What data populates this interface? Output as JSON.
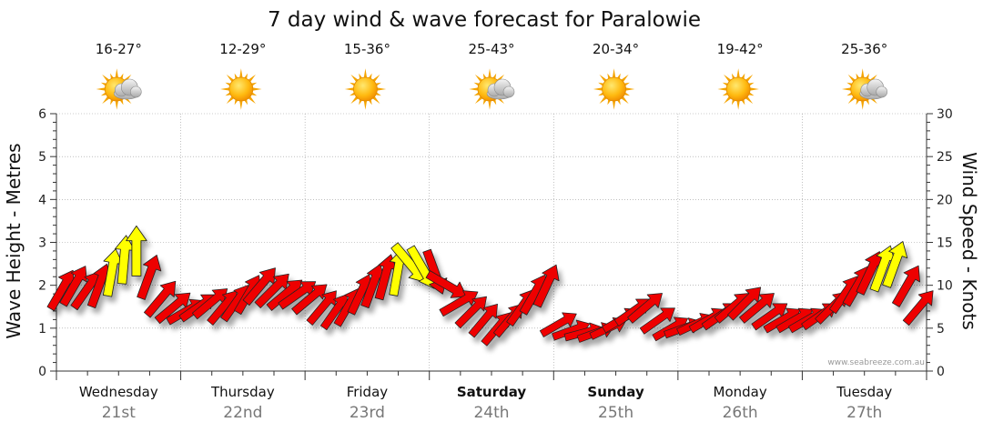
{
  "chart_data": {
    "type": "line",
    "title": "7 day wind & wave forecast for Paralowie",
    "ylabel_left": "Wave Height - Metres",
    "ylabel_right": "Wind Speed - Knots",
    "ylim_left": [
      0,
      6
    ],
    "ylim_right": [
      0,
      30
    ],
    "yticks_left": [
      "0",
      "1",
      "2",
      "3",
      "4",
      "5",
      "6"
    ],
    "yticks_right": [
      "0",
      "5",
      "10",
      "15",
      "20",
      "25",
      "30"
    ],
    "credit": "www.seabreeze.com.au",
    "colors": {
      "strong_wind": "#ee0000",
      "light_wind": "#ffff00",
      "grid": "#999999"
    },
    "days": [
      {
        "name": "Wednesday",
        "date": "21st",
        "temps": "16-27°",
        "icon": "sun-cloud-icon",
        "weekend": false
      },
      {
        "name": "Thursday",
        "date": "22nd",
        "temps": "12-29°",
        "icon": "sun-icon",
        "weekend": false
      },
      {
        "name": "Friday",
        "date": "23rd",
        "temps": "15-36°",
        "icon": "sun-icon",
        "weekend": false
      },
      {
        "name": "Saturday",
        "date": "24th",
        "temps": "25-43°",
        "icon": "sun-cloud-icon",
        "weekend": true
      },
      {
        "name": "Sunday",
        "date": "25th",
        "temps": "20-34°",
        "icon": "sun-icon",
        "weekend": true
      },
      {
        "name": "Monday",
        "date": "26th",
        "temps": "19-42°",
        "icon": "sun-icon",
        "weekend": false
      },
      {
        "name": "Tuesday",
        "date": "27th",
        "temps": "25-36°",
        "icon": "sun-cloud-icon",
        "weekend": false
      }
    ],
    "series": [
      {
        "name": "wind",
        "x_unit": "days",
        "x": [
          0.0,
          0.1,
          0.2,
          0.3,
          0.4,
          0.5,
          0.6,
          0.7,
          0.8,
          0.9,
          1.0,
          1.1,
          1.2,
          1.3,
          1.4,
          1.5,
          1.6,
          1.7,
          1.8,
          1.9,
          2.0,
          2.1,
          2.2,
          2.3,
          2.4,
          2.5,
          2.6,
          2.7,
          2.8,
          2.9,
          3.0,
          3.1,
          3.2,
          3.3,
          3.4,
          3.5,
          3.6,
          3.7,
          3.8,
          3.9,
          4.0,
          4.1,
          4.2,
          4.3,
          4.4,
          4.5,
          4.6,
          4.7,
          4.8,
          4.9,
          5.0,
          5.1,
          5.2,
          5.3,
          5.4,
          5.5,
          5.6,
          5.7,
          5.8,
          5.9,
          6.0,
          6.1,
          6.2,
          6.3,
          6.4,
          6.5,
          6.6,
          6.7,
          6.8,
          6.9
        ],
        "knots": [
          10.5,
          10.5,
          10,
          11,
          13.5,
          14.5,
          16,
          12,
          10,
          9,
          7.5,
          8,
          8.5,
          7.5,
          8,
          9,
          11,
          10,
          9,
          9,
          8.5,
          7.5,
          7,
          7.5,
          9,
          11,
          12,
          12.5,
          14,
          13,
          12,
          10.5,
          8,
          7,
          6.5,
          6,
          6.5,
          8,
          10,
          11,
          6,
          5,
          5,
          4.5,
          5,
          6,
          7.5,
          8,
          6,
          5,
          5,
          5,
          6,
          7,
          8,
          9,
          8,
          7,
          6.5,
          6,
          6,
          6.5,
          7.5,
          9,
          10.5,
          12,
          13.5,
          13.5,
          11,
          8
        ],
        "direction_deg": [
          30,
          30,
          35,
          20,
          10,
          5,
          0,
          20,
          40,
          50,
          60,
          55,
          50,
          40,
          35,
          30,
          40,
          45,
          50,
          55,
          50,
          40,
          35,
          30,
          25,
          20,
          15,
          10,
          140,
          150,
          160,
          120,
          60,
          45,
          40,
          40,
          40,
          35,
          30,
          25,
          60,
          70,
          75,
          70,
          65,
          60,
          55,
          50,
          55,
          60,
          70,
          65,
          60,
          55,
          50,
          45,
          50,
          55,
          60,
          60,
          60,
          55,
          45,
          35,
          30,
          25,
          20,
          20,
          30,
          40
        ],
        "wave_m": [
          1.9,
          2.0,
          1.9,
          2.0,
          2.3,
          2.6,
          2.8,
          2.2,
          1.7,
          1.5,
          1.4,
          1.5,
          1.6,
          1.5,
          1.6,
          1.8,
          2.0,
          1.9,
          1.8,
          1.8,
          1.7,
          1.5,
          1.4,
          1.5,
          1.8,
          2.0,
          2.2,
          2.3,
          2.5,
          2.4,
          2.3,
          2.0,
          1.6,
          1.4,
          1.2,
          1.0,
          1.2,
          1.5,
          1.8,
          2.0,
          1.1,
          0.95,
          0.9,
          0.9,
          1.0,
          1.2,
          1.4,
          1.5,
          1.2,
          1.0,
          1.0,
          1.1,
          1.2,
          1.3,
          1.5,
          1.6,
          1.5,
          1.3,
          1.2,
          1.2,
          1.2,
          1.3,
          1.5,
          1.8,
          2.0,
          2.3,
          2.4,
          2.5,
          2.0,
          1.5
        ]
      }
    ]
  }
}
